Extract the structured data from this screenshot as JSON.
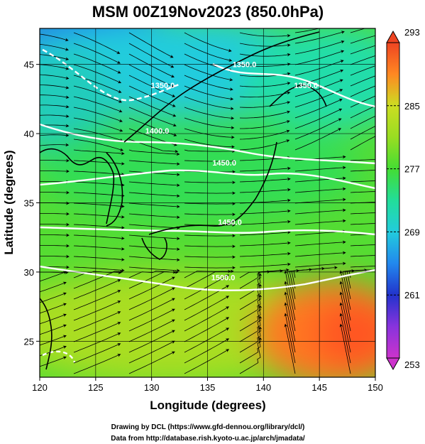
{
  "chart_data": {
    "type": "heatmap",
    "title": "MSM 00Z19Nov2023 (850.0hPa)",
    "xlabel": "Longitude (degrees)",
    "ylabel": "Latitude  (degrees)",
    "xlim": [
      120,
      150
    ],
    "ylim": [
      22.4,
      47.6
    ],
    "x_ticks": [
      120,
      125,
      130,
      135,
      140,
      145,
      150
    ],
    "y_ticks": [
      25,
      30,
      35,
      40,
      45
    ],
    "colorbar": {
      "min": 253,
      "max": 293,
      "labels": [
        293,
        285,
        277,
        269,
        261,
        253
      ],
      "stops": [
        {
          "value": 253,
          "color": "#cc33cc"
        },
        {
          "value": 257,
          "color": "#8833dd"
        },
        {
          "value": 261,
          "color": "#2233cc"
        },
        {
          "value": 265,
          "color": "#2288ee"
        },
        {
          "value": 269,
          "color": "#22ccdd"
        },
        {
          "value": 273,
          "color": "#22dd99"
        },
        {
          "value": 277,
          "color": "#44dd33"
        },
        {
          "value": 281,
          "color": "#99dd22"
        },
        {
          "value": 285,
          "color": "#ccdd22"
        },
        {
          "value": 289,
          "color": "#ff8822"
        },
        {
          "value": 293,
          "color": "#ee4422"
        }
      ]
    },
    "contour_labels": [
      {
        "text": "1350.0",
        "lon": 131.0,
        "lat": 43.3
      },
      {
        "text": "1350.0",
        "lon": 138.3,
        "lat": 44.8
      },
      {
        "text": "1350.0",
        "lon": 143.8,
        "lat": 43.3
      },
      {
        "text": "1400.0",
        "lon": 130.5,
        "lat": 40.0
      },
      {
        "text": "1450.0",
        "lon": 136.5,
        "lat": 37.7
      },
      {
        "text": "1450.0",
        "lon": 137.0,
        "lat": 33.4
      },
      {
        "text": "1500.0",
        "lon": 136.4,
        "lat": 29.4
      }
    ]
  },
  "credits": {
    "line1": "Drawing by DCL (https://www.gfd-dennou.org/library/dcl/)",
    "line2": "Data from http://database.rish.kyoto-u.ac.jp/arch/jmadata/"
  }
}
